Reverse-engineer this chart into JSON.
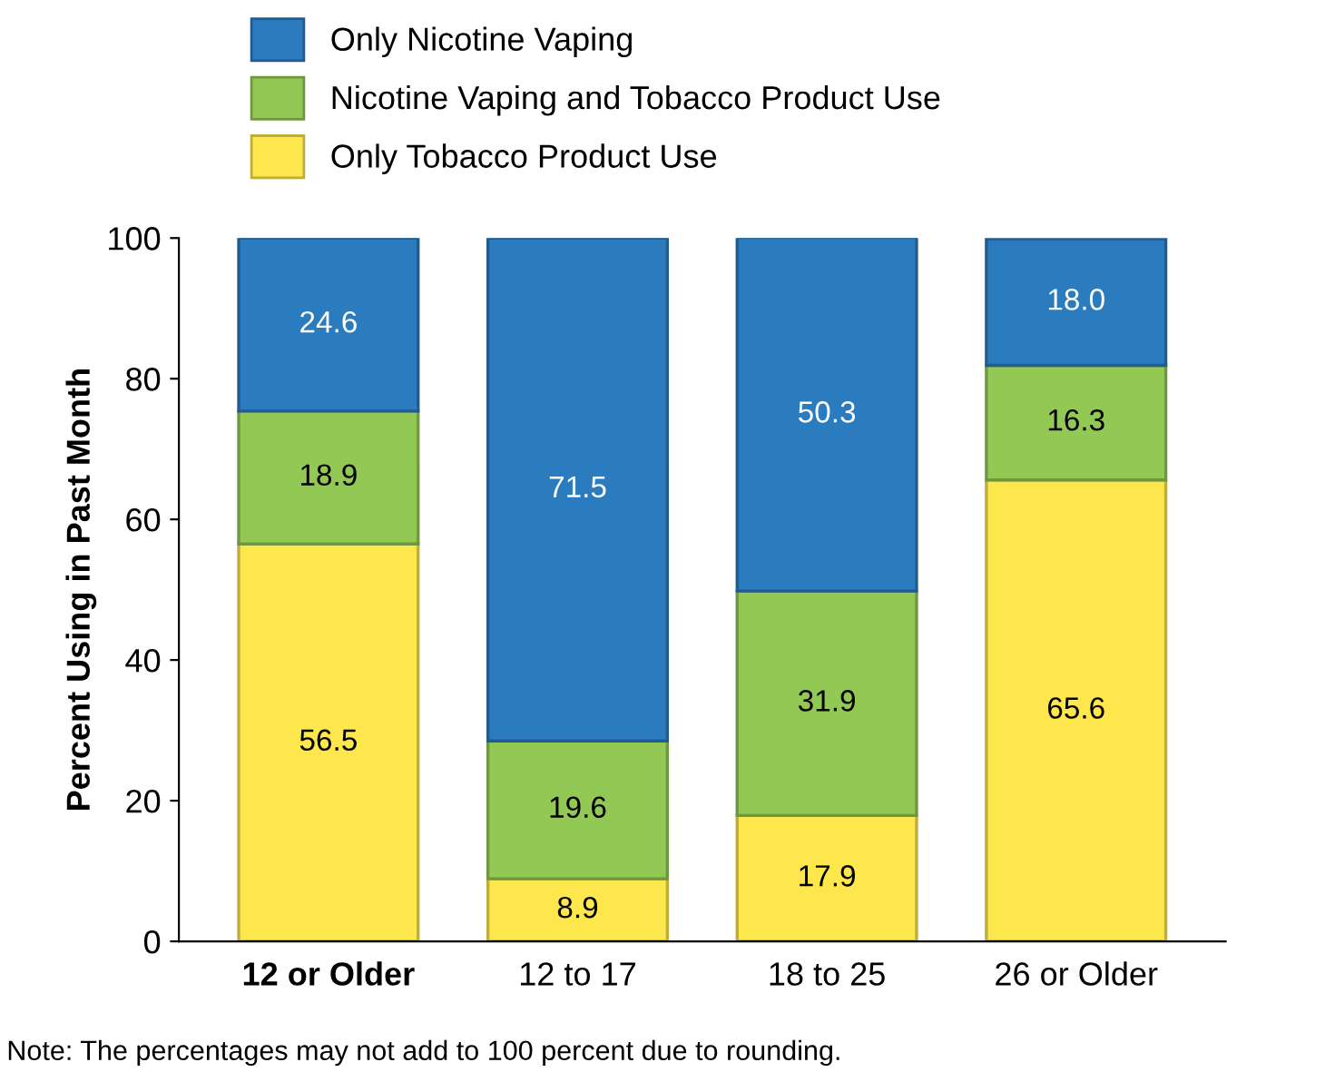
{
  "chart_data": {
    "type": "bar",
    "stacked": true,
    "ylabel": "Percent Using in Past Month",
    "categories": [
      "12 or Older",
      "12 to 17",
      "18 to 25",
      "26 or Older"
    ],
    "series": [
      {
        "name": "Only Tobacco Product Use",
        "color": "#fde74c",
        "values": [
          56.5,
          8.9,
          17.9,
          65.6
        ],
        "value_labels": [
          "56.5",
          "8.9",
          "17.9",
          "65.6"
        ]
      },
      {
        "name": "Nicotine Vaping and Tobacco Product Use",
        "color": "#92c954",
        "values": [
          18.9,
          19.6,
          31.9,
          16.3
        ],
        "value_labels": [
          "18.9",
          "19.6",
          "31.9",
          "16.3"
        ]
      },
      {
        "name": "Only Nicotine Vaping",
        "color": "#2b7bbf",
        "values": [
          24.6,
          71.5,
          50.3,
          18.0
        ],
        "value_labels": [
          "24.6",
          "71.5",
          "50.3",
          "18.0"
        ]
      }
    ],
    "ylim": [
      0,
      100
    ],
    "yticks": [
      0,
      20,
      40,
      60,
      80,
      100
    ],
    "grid": false,
    "legend": "top",
    "annotations": [
      "Note: The percentages may not add to 100 percent due to rounding."
    ]
  }
}
